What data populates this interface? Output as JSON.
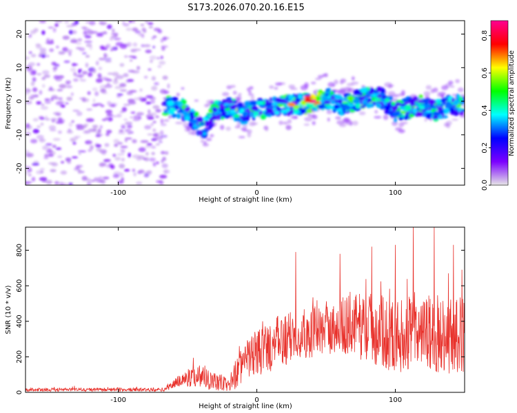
{
  "figure_title": "S173.2026.070.20.16.E15",
  "chart_data": [
    {
      "type": "heatmap",
      "title": "S173.2026.070.20.16.E15",
      "xlabel": "Height of straight line (km)",
      "ylabel": "Frequency (Hz)",
      "xlim": [
        -167,
        150
      ],
      "ylim": [
        -25,
        24
      ],
      "xticks": [
        -100,
        0,
        100
      ],
      "yticks": [
        -20,
        -10,
        0,
        10,
        20
      ],
      "colorbar": {
        "label": "Normalized spectral amplitude",
        "range": [
          0,
          0.88
        ],
        "ticks": [
          0.0,
          0.2,
          0.4,
          0.6,
          0.8
        ],
        "colormap": [
          "#e6e6e6",
          "#7b00ff",
          "#0000ff",
          "#00ffff",
          "#00ff00",
          "#ffff00",
          "#ff0000",
          "#ff0090"
        ]
      },
      "noise_region": {
        "x": [
          -167,
          -67
        ],
        "freq": [
          -25,
          24
        ],
        "amplitude": 0.12
      },
      "ridge": [
        {
          "x": -67,
          "freq": -1
        },
        {
          "x": -55,
          "freq": -2
        },
        {
          "x": -45,
          "freq": -6
        },
        {
          "x": -38,
          "freq": -8
        },
        {
          "x": -30,
          "freq": -3
        },
        {
          "x": -20,
          "freq": -2
        },
        {
          "x": -10,
          "freq": -4
        },
        {
          "x": 0,
          "freq": -2
        },
        {
          "x": 10,
          "freq": -2
        },
        {
          "x": 20,
          "freq": -1
        },
        {
          "x": 30,
          "freq": -1
        },
        {
          "x": 40,
          "freq": 0
        },
        {
          "x": 50,
          "freq": 1
        },
        {
          "x": 60,
          "freq": -1
        },
        {
          "x": 70,
          "freq": 0
        },
        {
          "x": 80,
          "freq": 1
        },
        {
          "x": 90,
          "freq": 1
        },
        {
          "x": 100,
          "freq": -3
        },
        {
          "x": 110,
          "freq": -2
        },
        {
          "x": 120,
          "freq": -1
        },
        {
          "x": 130,
          "freq": -3
        },
        {
          "x": 140,
          "freq": -1
        },
        {
          "x": 150,
          "freq": -1
        }
      ],
      "peak": {
        "x": 40,
        "freq": 0,
        "amplitude": 0.88
      }
    },
    {
      "type": "line",
      "xlabel": "Height of straight line (km)",
      "ylabel": "SNR (10 * v/v)",
      "xlim": [
        -167,
        150
      ],
      "ylim": [
        0,
        930
      ],
      "xticks": [
        -100,
        0,
        100
      ],
      "yticks": [
        0,
        200,
        400,
        600,
        800
      ],
      "color": "#e8302a",
      "envelope": [
        {
          "x": -167,
          "mean": 15,
          "spread": 10
        },
        {
          "x": -67,
          "mean": 15,
          "spread": 10
        },
        {
          "x": -55,
          "mean": 70,
          "spread": 40
        },
        {
          "x": -40,
          "mean": 100,
          "spread": 70
        },
        {
          "x": -30,
          "mean": 60,
          "spread": 60
        },
        {
          "x": -20,
          "mean": 40,
          "spread": 40
        },
        {
          "x": -15,
          "mean": 110,
          "spread": 90
        },
        {
          "x": -5,
          "mean": 200,
          "spread": 120
        },
        {
          "x": 10,
          "mean": 260,
          "spread": 150
        },
        {
          "x": 30,
          "mean": 330,
          "spread": 150
        },
        {
          "x": 50,
          "mean": 350,
          "spread": 140
        },
        {
          "x": 65,
          "mean": 380,
          "spread": 170
        },
        {
          "x": 80,
          "mean": 370,
          "spread": 200
        },
        {
          "x": 100,
          "mean": 320,
          "spread": 210
        },
        {
          "x": 120,
          "mean": 330,
          "spread": 220
        },
        {
          "x": 150,
          "mean": 320,
          "spread": 220
        }
      ],
      "spikes": [
        {
          "x": 28,
          "value": 790
        },
        {
          "x": 60,
          "value": 780
        },
        {
          "x": 83,
          "value": 820
        },
        {
          "x": 100,
          "value": 830
        },
        {
          "x": 113,
          "value": 930
        },
        {
          "x": 128,
          "value": 930
        },
        {
          "x": 142,
          "value": 830
        },
        {
          "x": 148,
          "value": 690
        }
      ]
    }
  ]
}
